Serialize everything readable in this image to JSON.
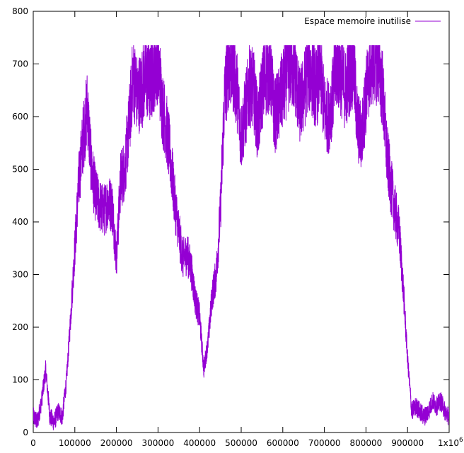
{
  "chart_data": {
    "type": "line",
    "title": "",
    "xlabel": "",
    "ylabel": "",
    "xlim": [
      0,
      1000000
    ],
    "ylim": [
      0,
      800
    ],
    "x_ticks": [
      {
        "value": 0,
        "label": "0"
      },
      {
        "value": 100000,
        "label": "100000"
      },
      {
        "value": 200000,
        "label": "200000"
      },
      {
        "value": 300000,
        "label": "300000"
      },
      {
        "value": 400000,
        "label": "400000"
      },
      {
        "value": 500000,
        "label": "500000"
      },
      {
        "value": 600000,
        "label": "600000"
      },
      {
        "value": 700000,
        "label": "700000"
      },
      {
        "value": 800000,
        "label": "800000"
      },
      {
        "value": 900000,
        "label": "900000"
      }
    ],
    "x_last_tick": {
      "value": 1000000,
      "mantissa": "1x10",
      "exponent": "6"
    },
    "y_ticks": [
      {
        "value": 0,
        "label": "0"
      },
      {
        "value": 100,
        "label": "100"
      },
      {
        "value": 200,
        "label": "200"
      },
      {
        "value": 300,
        "label": "300"
      },
      {
        "value": 400,
        "label": "400"
      },
      {
        "value": 500,
        "label": "500"
      },
      {
        "value": 600,
        "label": "600"
      },
      {
        "value": 700,
        "label": "700"
      },
      {
        "value": 800,
        "label": "800"
      }
    ],
    "grid": false,
    "legend_position": "top-right",
    "series": [
      {
        "name": "Espace memoire inutilise",
        "color": "#9400d3",
        "x": [
          0,
          10000,
          20000,
          30000,
          40000,
          50000,
          60000,
          70000,
          80000,
          90000,
          100000,
          110000,
          120000,
          130000,
          140000,
          150000,
          160000,
          170000,
          180000,
          190000,
          200000,
          210000,
          220000,
          230000,
          240000,
          250000,
          260000,
          270000,
          280000,
          290000,
          300000,
          310000,
          320000,
          330000,
          340000,
          350000,
          360000,
          370000,
          380000,
          390000,
          400000,
          410000,
          420000,
          430000,
          440000,
          450000,
          460000,
          470000,
          480000,
          490000,
          500000,
          510000,
          520000,
          530000,
          540000,
          550000,
          560000,
          570000,
          580000,
          590000,
          600000,
          610000,
          620000,
          630000,
          640000,
          650000,
          660000,
          670000,
          680000,
          690000,
          700000,
          710000,
          720000,
          730000,
          740000,
          750000,
          760000,
          770000,
          780000,
          790000,
          800000,
          810000,
          820000,
          830000,
          840000,
          850000,
          860000,
          870000,
          880000,
          890000,
          900000,
          910000,
          920000,
          930000,
          940000,
          950000,
          960000,
          970000,
          980000,
          990000,
          1000000
        ],
        "values": [
          30,
          20,
          60,
          120,
          30,
          20,
          40,
          30,
          100,
          220,
          350,
          480,
          560,
          620,
          500,
          450,
          430,
          420,
          440,
          430,
          330,
          480,
          500,
          580,
          680,
          640,
          650,
          680,
          660,
          690,
          710,
          620,
          580,
          520,
          440,
          380,
          330,
          340,
          310,
          250,
          220,
          120,
          170,
          260,
          300,
          420,
          640,
          700,
          690,
          650,
          560,
          610,
          660,
          650,
          580,
          650,
          680,
          690,
          600,
          620,
          650,
          680,
          700,
          680,
          620,
          640,
          690,
          680,
          650,
          690,
          610,
          600,
          640,
          700,
          680,
          650,
          680,
          700,
          580,
          560,
          640,
          690,
          710,
          700,
          650,
          530,
          470,
          420,
          380,
          270,
          140,
          40,
          50,
          40,
          30,
          40,
          60,
          50,
          60,
          40,
          30
        ]
      }
    ]
  }
}
